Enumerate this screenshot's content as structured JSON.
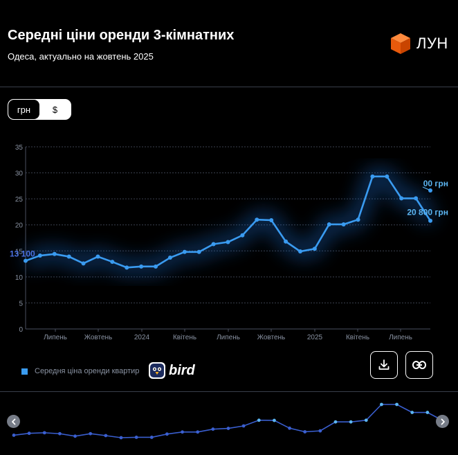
{
  "header": {
    "title": "Середні ціни оренди 3-кімнатних",
    "subtitle": "Одеса, актуально на жовтень 2025",
    "logo_text": "ЛУН"
  },
  "currency_toggle": {
    "options": [
      "грн",
      "$"
    ],
    "selected": "грн"
  },
  "chart_data": {
    "type": "line",
    "ylim": [
      0,
      35
    ],
    "y_ticks": [
      "0",
      "5",
      "10",
      "15",
      "20",
      "25",
      "30",
      "35"
    ],
    "x_tick_labels": [
      "Липень",
      "Жовтень",
      "2024",
      "Квітень",
      "Липень",
      "Жовтень",
      "2025",
      "Квітень",
      "Липень"
    ],
    "grid": true,
    "series": [
      {
        "name": "Середня ціна оренди квартир",
        "color": "#3a9bf0",
        "values": [
          13.1,
          14.1,
          14.4,
          13.9,
          12.6,
          13.9,
          12.9,
          11.8,
          12.0,
          12.0,
          13.7,
          14.8,
          14.8,
          16.3,
          16.7,
          18.0,
          21.0,
          20.9,
          16.8,
          14.9,
          15.4,
          20.1,
          20.1,
          21.0,
          29.3,
          29.3,
          25.1,
          25.1,
          20.8
        ]
      }
    ],
    "annotations": {
      "start_label": "13 100",
      "end_label": "20 800 грн",
      "partial_label": "00 грн"
    },
    "legend_position": "bottom-left"
  },
  "legend": {
    "label": "Середня ціна оренди квартир"
  },
  "branding": {
    "bird_text": "bird"
  },
  "actions": {
    "download": "download-icon",
    "share": "link-icon"
  },
  "navigator": {
    "left": "chevron-left-icon",
    "right": "chevron-right-icon"
  }
}
